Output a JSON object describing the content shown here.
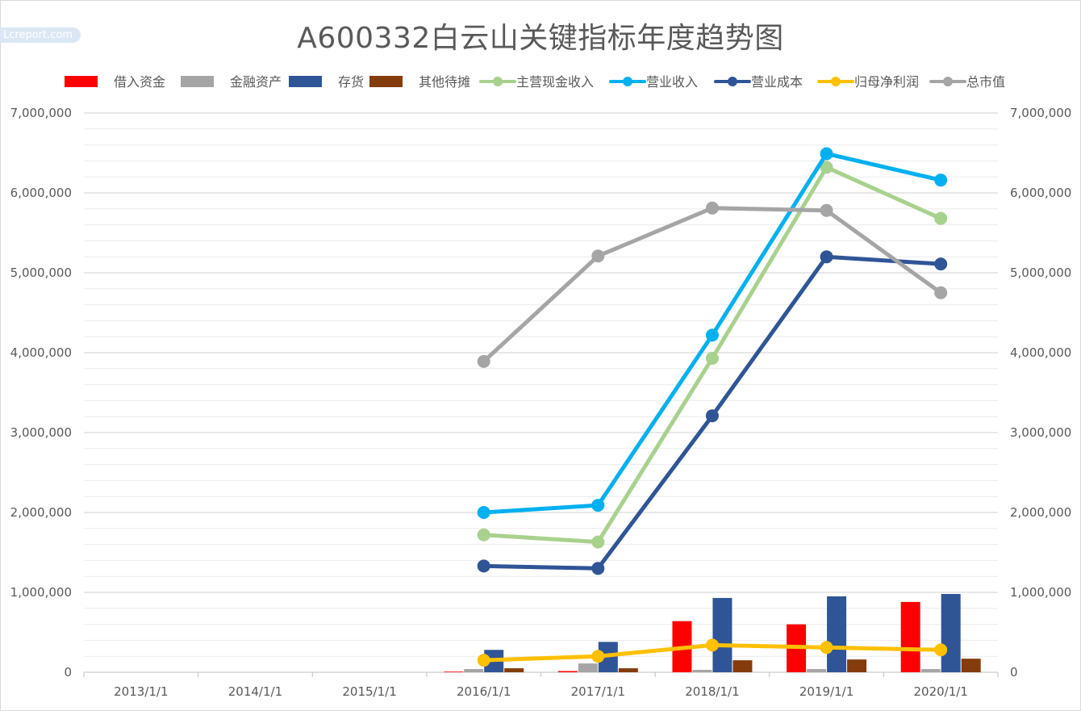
{
  "title": "A600332白云山关键指标年度趋势图",
  "watermark": "Lcreport.com",
  "chart_data": {
    "type": "bar+line",
    "title": "A600332白云山关键指标年度趋势图",
    "categories": [
      "2013/1/1",
      "2014/1/1",
      "2015/1/1",
      "2016/1/1",
      "2017/1/1",
      "2018/1/1",
      "2019/1/1",
      "2020/1/1"
    ],
    "ylim": [
      0,
      7000000
    ],
    "y_ticks": [
      "0",
      "1,000,000",
      "2,000,000",
      "3,000,000",
      "4,000,000",
      "5,000,000",
      "6,000,000",
      "7,000,000"
    ],
    "y2_ticks": [
      "0",
      "1,000,000",
      "2,000,000",
      "3,000,000",
      "4,000,000",
      "5,000,000",
      "6,000,000",
      "7,000,000"
    ],
    "grid": true,
    "legend_position": "top",
    "bar_series": [
      {
        "name": "借入资金",
        "color": "#ff0000",
        "values": [
          null,
          null,
          null,
          8000,
          15000,
          640000,
          600000,
          880000
        ]
      },
      {
        "name": "金融资产",
        "color": "#a5a5a5",
        "values": [
          null,
          null,
          null,
          40000,
          110000,
          30000,
          40000,
          40000
        ]
      },
      {
        "name": "存货",
        "color": "#2f5597",
        "values": [
          null,
          null,
          null,
          280000,
          380000,
          930000,
          950000,
          980000
        ]
      },
      {
        "name": "其他待摊",
        "color": "#843c0c",
        "values": [
          null,
          null,
          null,
          50000,
          50000,
          150000,
          160000,
          170000
        ]
      }
    ],
    "line_series": [
      {
        "name": "主营现金收入",
        "color": "#a9d18e",
        "values": [
          null,
          null,
          null,
          1720000,
          1630000,
          3930000,
          6320000,
          5680000
        ]
      },
      {
        "name": "营业收入",
        "color": "#00b0f0",
        "values": [
          null,
          null,
          null,
          2000000,
          2090000,
          4220000,
          6490000,
          6160000
        ]
      },
      {
        "name": "营业成本",
        "color": "#2f5597",
        "values": [
          null,
          null,
          null,
          1330000,
          1300000,
          3210000,
          5200000,
          5110000
        ]
      },
      {
        "name": "归母净利润",
        "color": "#ffc000",
        "values": [
          null,
          null,
          null,
          150000,
          200000,
          340000,
          310000,
          280000
        ]
      },
      {
        "name": "总市值",
        "color": "#a5a5a5",
        "values": [
          null,
          null,
          null,
          3890000,
          5210000,
          5810000,
          5780000,
          4750000
        ]
      }
    ]
  }
}
